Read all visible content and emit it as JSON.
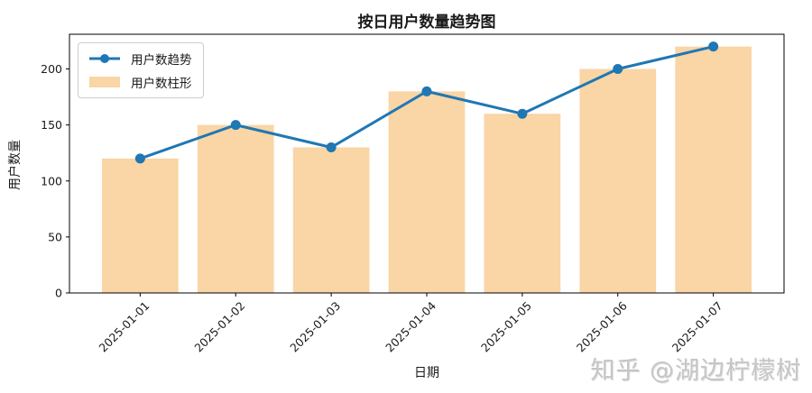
{
  "title": "按日用户数量趋势图",
  "watermark": "知乎 @湖边柠檬树",
  "legend": {
    "line_label": "用户数趋势",
    "bar_label": "用户数柱形"
  },
  "colors": {
    "line": "#1f77b4",
    "bar": "#fad5a5",
    "axis": "#000000",
    "tick_text": "#1a1a1a",
    "watermark": "#c6c6c6"
  },
  "chart_data": {
    "type": "bar",
    "subtype": "bar-and-line-combo",
    "title": "按日用户数量趋势图",
    "xlabel": "日期",
    "ylabel": "用户数量",
    "categories": [
      "2025-01-01",
      "2025-01-02",
      "2025-01-03",
      "2025-01-04",
      "2025-01-05",
      "2025-01-06",
      "2025-01-07"
    ],
    "series": [
      {
        "name": "用户数趋势",
        "type": "line",
        "color": "#1f77b4",
        "marker": "circle",
        "values": [
          120,
          150,
          130,
          180,
          160,
          200,
          220
        ]
      },
      {
        "name": "用户数柱形",
        "type": "bar",
        "color": "#fad5a5",
        "values": [
          120,
          150,
          130,
          180,
          160,
          200,
          220
        ]
      }
    ],
    "ylim": [
      0,
      231
    ],
    "yticks": [
      0,
      50,
      100,
      150,
      200
    ],
    "grid": false,
    "legend_position": "upper-left",
    "x_tick_rotation": 45
  }
}
